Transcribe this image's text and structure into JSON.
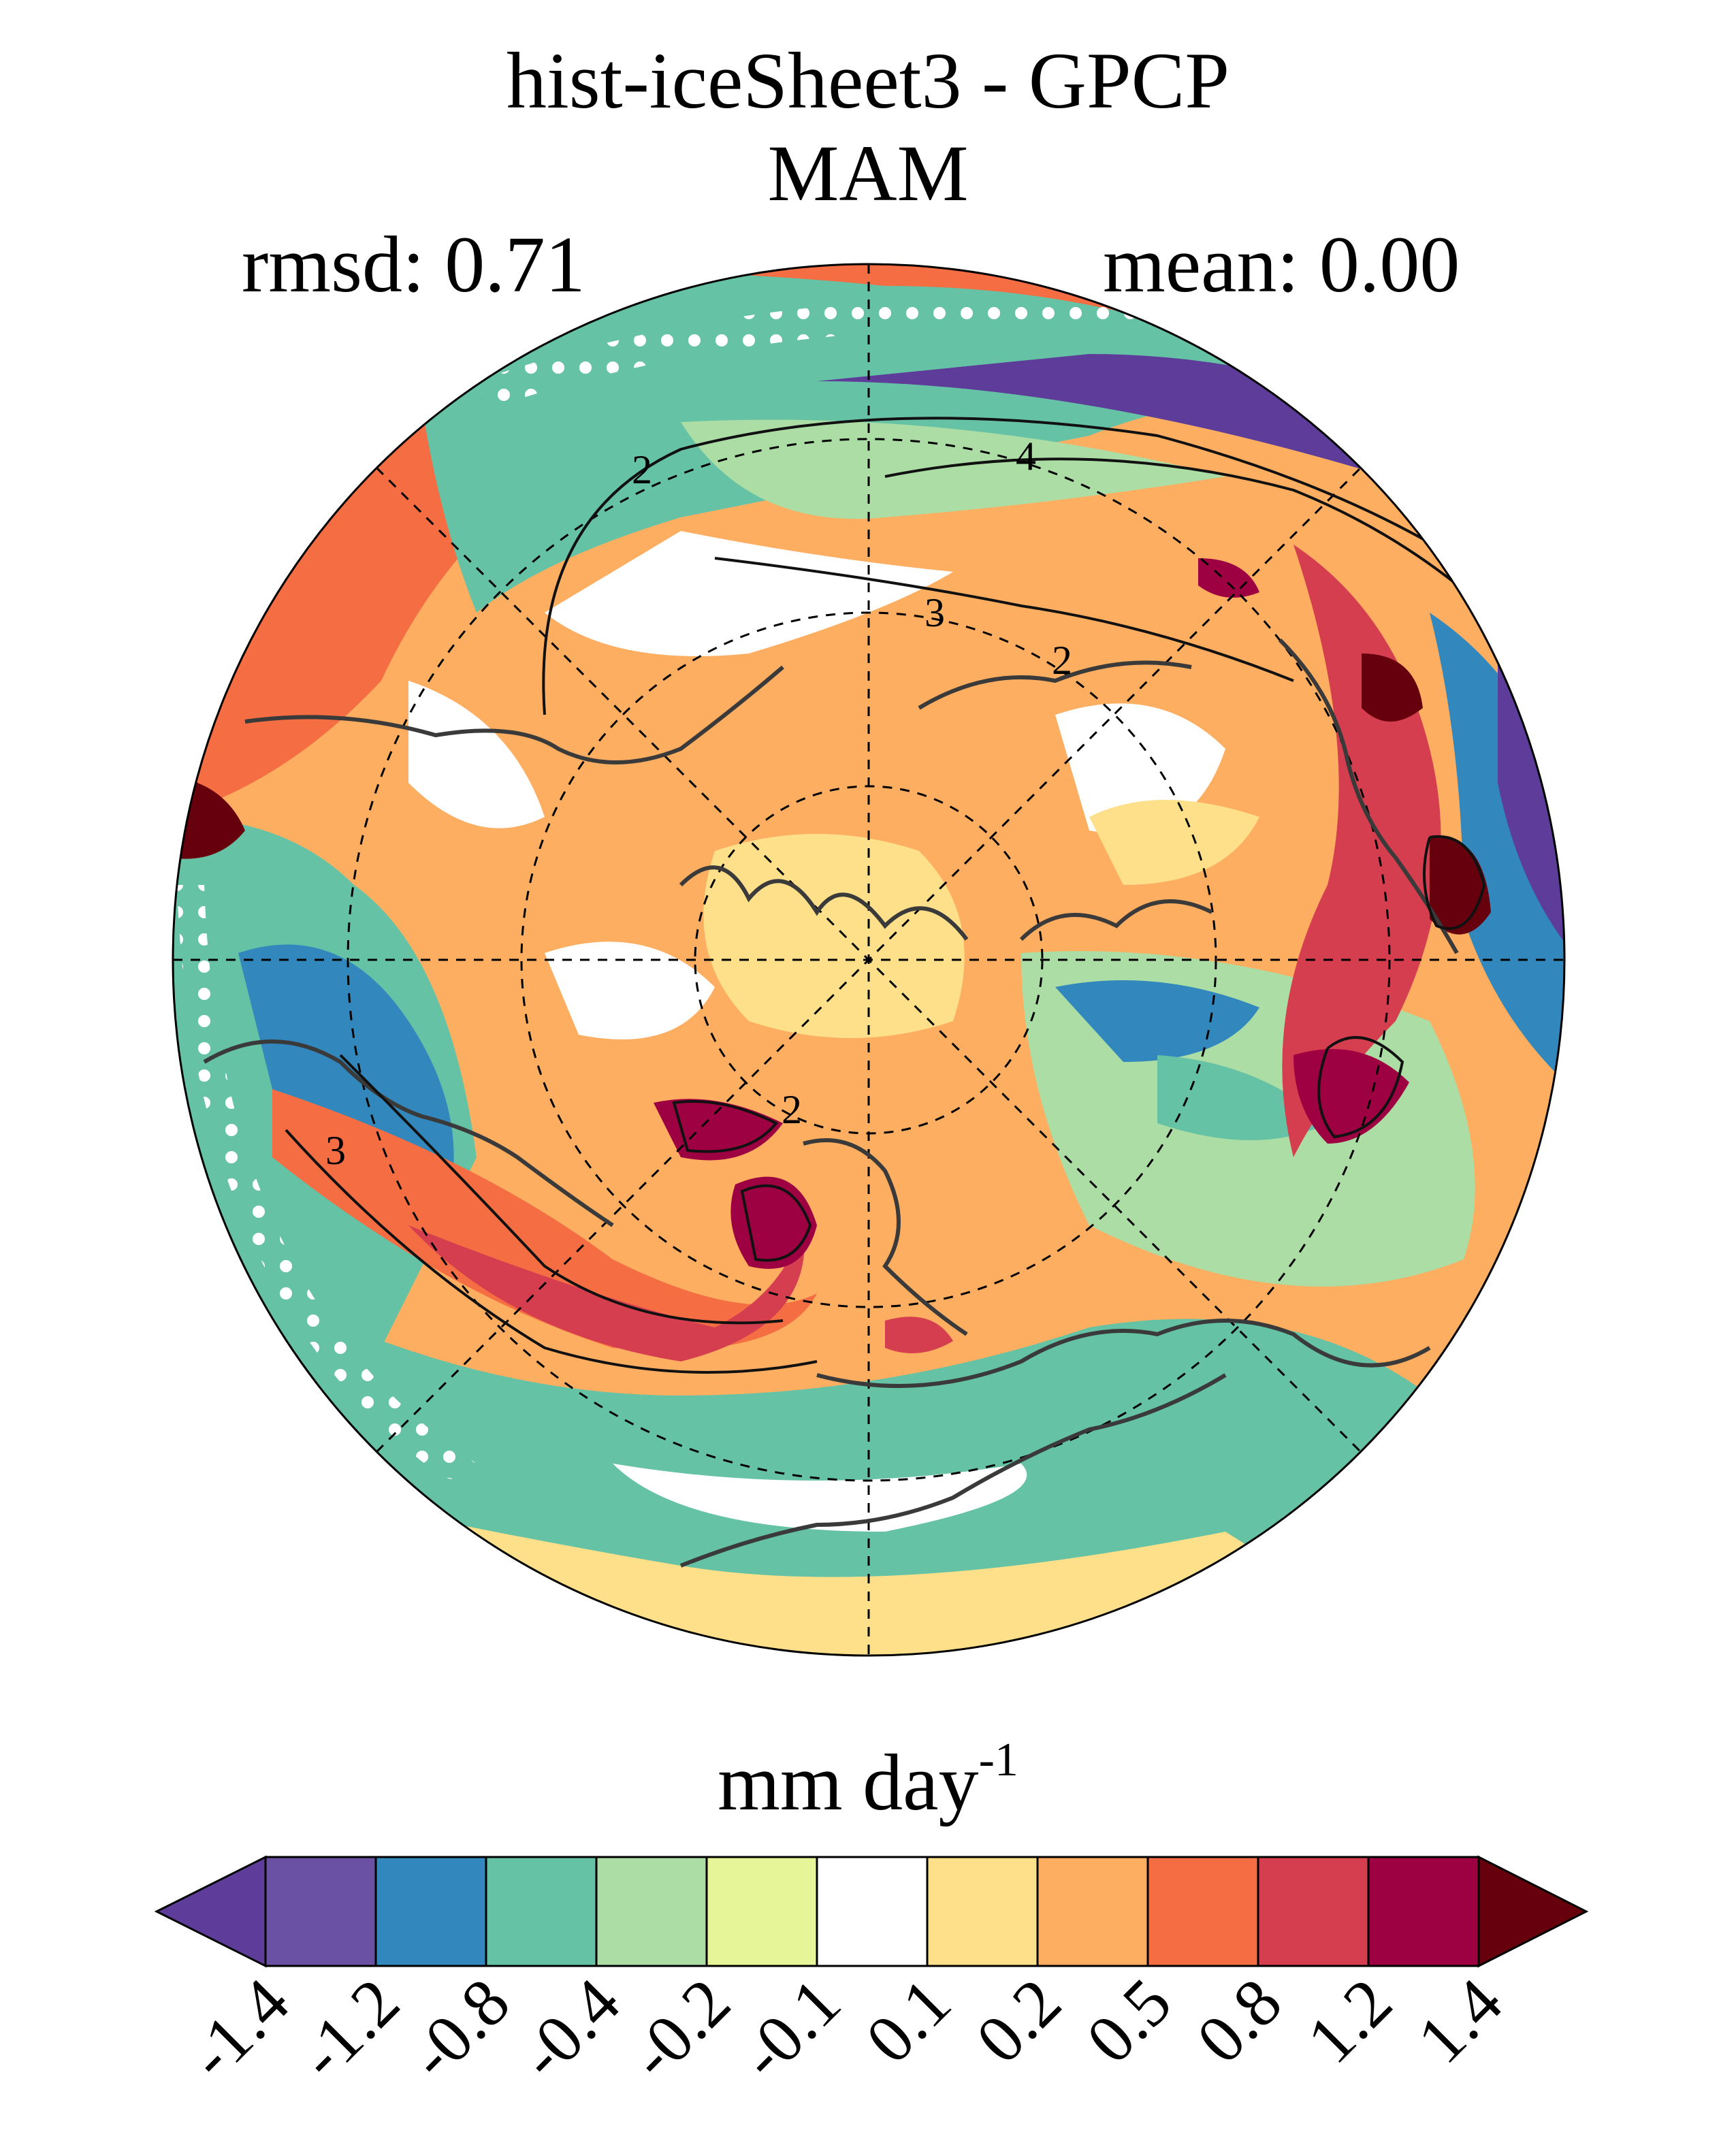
{
  "title": "hist-iceSheet3 - GPCP",
  "subtitle": "MAM",
  "rmsd_label": "rmsd: 0.71",
  "mean_label": "mean: 0.00",
  "units": {
    "base": "mm day",
    "exponent": "-1"
  },
  "colorbar": {
    "labels": [
      "-1.4",
      "-1.2",
      "-0.8",
      "-0.4",
      "-0.2",
      "-0.1",
      "0.1",
      "0.2",
      "0.5",
      "0.8",
      "1.2",
      "1.4"
    ],
    "colors": [
      "#5e3c99",
      "#6a51a3",
      "#3288bd",
      "#66c2a5",
      "#abdda4",
      "#e6f598",
      "#ffffff",
      "#fee08b",
      "#fdae61",
      "#f46d43",
      "#d53e4f",
      "#9e0142",
      "#67000d"
    ]
  },
  "map": {
    "projection": "north-polar-stereographic",
    "contour_labels": [
      "2",
      "4",
      "3",
      "2",
      "3",
      "2"
    ],
    "legend_colors": {
      "land-outline": "#3a3a3a",
      "contour": "#111111",
      "stipple": "#ffffff"
    }
  }
}
